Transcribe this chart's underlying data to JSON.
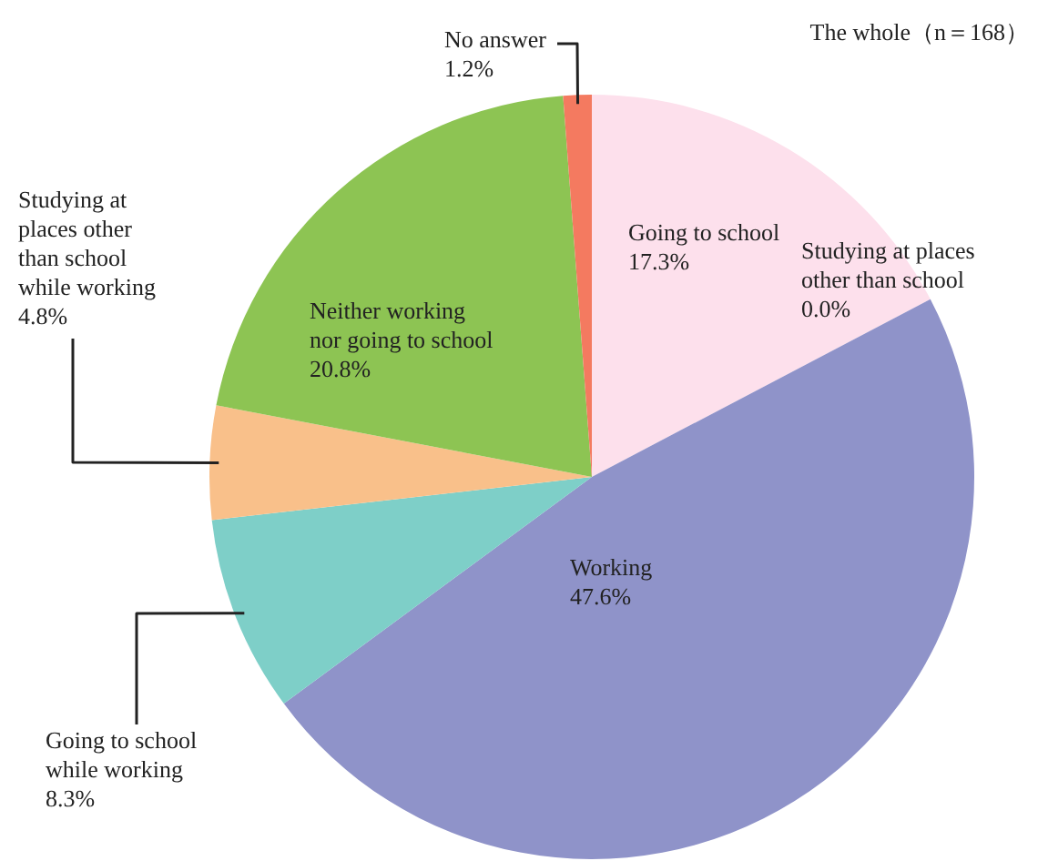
{
  "chart_data": {
    "type": "pie",
    "title": "The whole（n＝168）",
    "categories": [
      "Going to school",
      "Studying at places other than school",
      "Working",
      "Going to school while working",
      "Studying at places other than school while working",
      "Neither working nor going to school",
      "No answer"
    ],
    "values": [
      17.3,
      0.0,
      47.6,
      8.3,
      4.8,
      20.8,
      1.2
    ],
    "colors": [
      "#fde0ec",
      "#f0c8d8",
      "#8f93c9",
      "#7ecfc8",
      "#f9c08a",
      "#8dc453",
      "#f47a60"
    ],
    "value_labels": [
      "17.3%",
      "0.0%",
      "47.6%",
      "8.3%",
      "4.8%",
      "20.8%",
      "1.2%"
    ]
  }
}
